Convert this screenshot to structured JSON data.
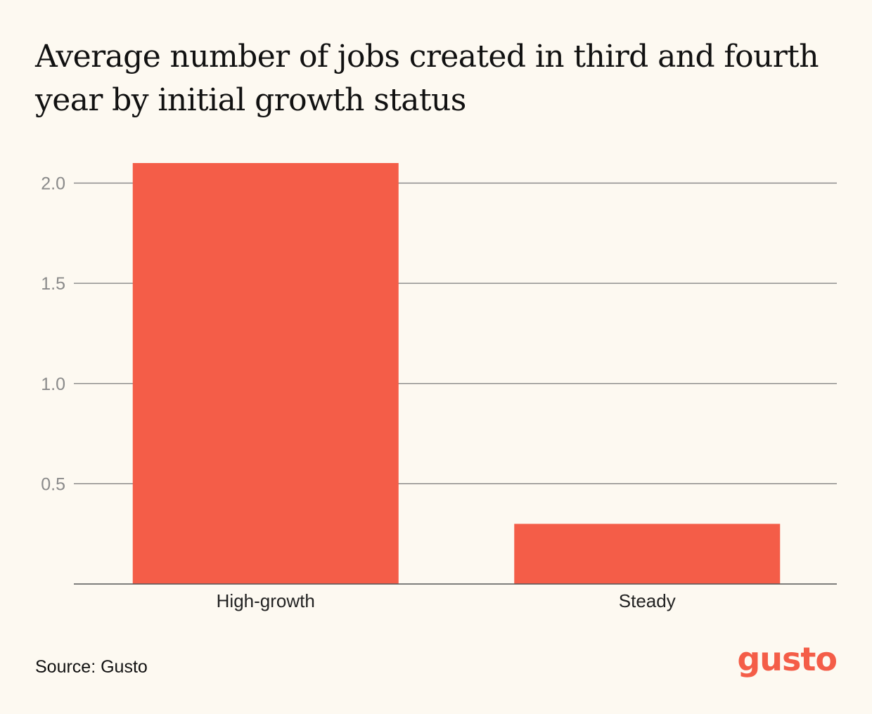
{
  "title": "Average number of jobs created in third and fourth year by initial growth status",
  "source": "Source: Gusto",
  "logo": {
    "text": "gusto",
    "color": "#f45d48"
  },
  "colors": {
    "bar": "#f45d48",
    "grid": "#7a7a7a",
    "tick_label": "#8a8a8a",
    "category_label": "#222222"
  },
  "chart_data": {
    "type": "bar",
    "categories": [
      "High-growth",
      "Steady"
    ],
    "values": [
      2.1,
      0.3
    ],
    "title": "Average number of jobs created in third and fourth year by initial growth status",
    "xlabel": "",
    "ylabel": "",
    "ylim": [
      0,
      2.1
    ],
    "yticks": [
      0.5,
      1.0,
      1.5,
      2.0
    ],
    "ytick_labels": [
      "0.5",
      "1.0",
      "1.5",
      "2.0"
    ],
    "grid": true,
    "legend": "none"
  }
}
